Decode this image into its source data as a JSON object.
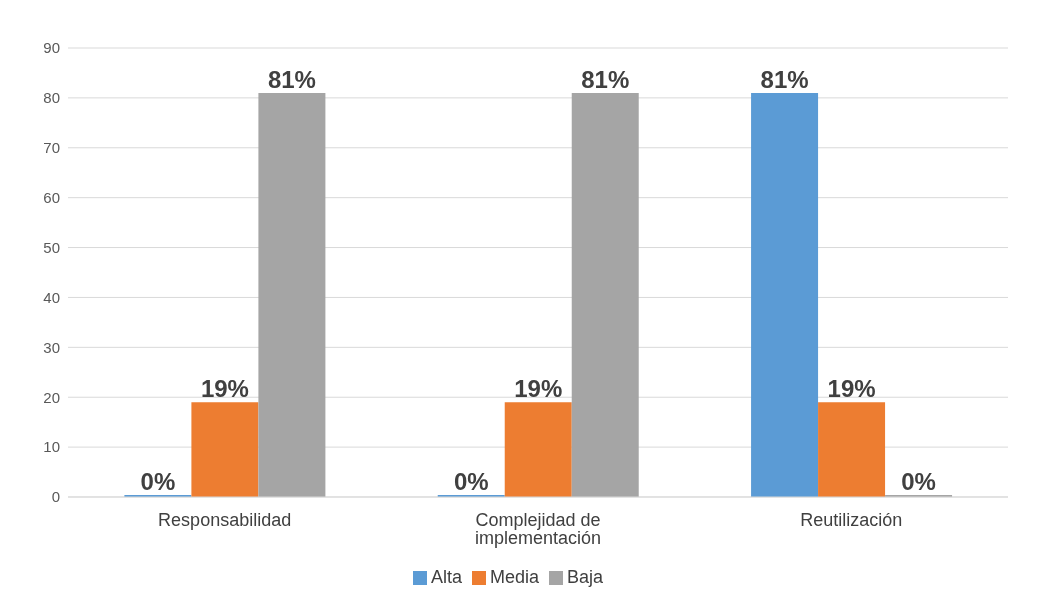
{
  "chart_data": {
    "type": "bar",
    "categories": [
      "Responsabilidad",
      "Complejidad de implementación",
      "Reutilización"
    ],
    "series": [
      {
        "name": "Alta",
        "color": "#5b9bd5",
        "values": [
          0,
          0,
          81
        ],
        "value_labels": [
          "0%",
          "0%",
          "81%"
        ]
      },
      {
        "name": "Media",
        "color": "#ed7d31",
        "values": [
          19,
          19,
          19
        ],
        "value_labels": [
          "19%",
          "19%",
          "19%"
        ]
      },
      {
        "name": "Baja",
        "color": "#a5a5a5",
        "values": [
          81,
          81,
          0
        ],
        "value_labels": [
          "81%",
          "81%",
          "0%"
        ]
      }
    ],
    "ylim": [
      0,
      90
    ],
    "yticks": [
      0,
      10,
      20,
      30,
      40,
      50,
      60,
      70,
      80,
      90
    ],
    "grid": "y",
    "legend": "bottom"
  }
}
